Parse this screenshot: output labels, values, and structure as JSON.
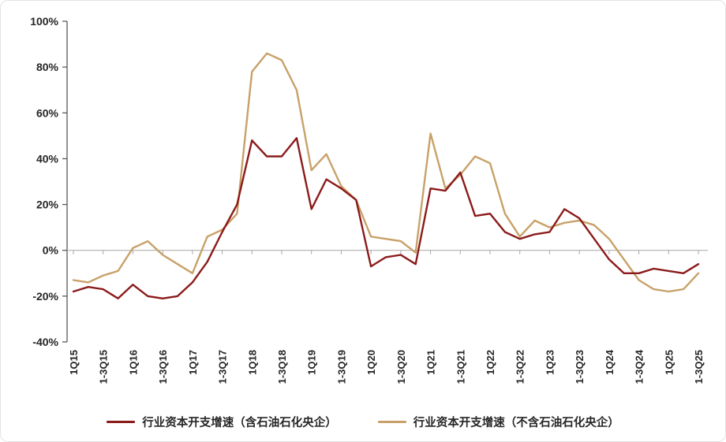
{
  "chart_data": {
    "type": "line",
    "title": "",
    "grid": false,
    "zero_line": true,
    "legend_position": "bottom",
    "y_axis": {
      "min": -40,
      "max": 100,
      "step": 20,
      "tick_suffix": "%"
    },
    "y_ticks": [
      {
        "v": 100,
        "label": "100%"
      },
      {
        "v": 80,
        "label": "80%"
      },
      {
        "v": 60,
        "label": "60%"
      },
      {
        "v": 40,
        "label": "40%"
      },
      {
        "v": 20,
        "label": "20%"
      },
      {
        "v": 0,
        "label": "0%"
      },
      {
        "v": -20,
        "label": "-20%"
      },
      {
        "v": -40,
        "label": "-40%"
      }
    ],
    "x_labels": [
      "1Q15",
      "1-3Q15",
      "1Q16",
      "1-3Q16",
      "1Q17",
      "1-3Q17",
      "1Q18",
      "1-3Q18",
      "1Q19",
      "1-3Q19",
      "1Q20",
      "1-3Q20",
      "1Q21",
      "1-3Q21",
      "1Q22",
      "1-3Q22",
      "1Q23",
      "1-3Q23",
      "1Q24",
      "1-3Q24",
      "1Q25",
      "1-3Q25"
    ],
    "points_per_label": 2,
    "series": [
      {
        "name": "行业资本开支增速（含石油石化央企）",
        "color": "#8B1A1A",
        "values": [
          -18,
          -16,
          -17,
          -21,
          -15,
          -20,
          -21,
          -20,
          -14,
          -5,
          8,
          20,
          48,
          41,
          41,
          49,
          18,
          31,
          27,
          22,
          -7,
          -3,
          -2,
          -6,
          27,
          26,
          34,
          15,
          16,
          8,
          5,
          7,
          8,
          18,
          14,
          5,
          -4,
          -10,
          -10,
          -8,
          -9,
          -10,
          -6
        ]
      },
      {
        "name": "行业资本开支增速（不含石油石化央企）",
        "color": "#C8A168",
        "values": [
          -13,
          -14,
          -11,
          -9,
          1,
          4,
          -2,
          -6,
          -10,
          6,
          9,
          16,
          78,
          86,
          83,
          70,
          35,
          42,
          28,
          22,
          6,
          5,
          4,
          -1,
          51,
          27,
          33,
          41,
          38,
          16,
          6,
          13,
          10,
          12,
          13,
          11,
          5,
          -4,
          -13,
          -17,
          -18,
          -17,
          -10
        ]
      }
    ],
    "axis_colors": {
      "axis": "#595959",
      "zero_line": "#a6a6a6"
    }
  }
}
